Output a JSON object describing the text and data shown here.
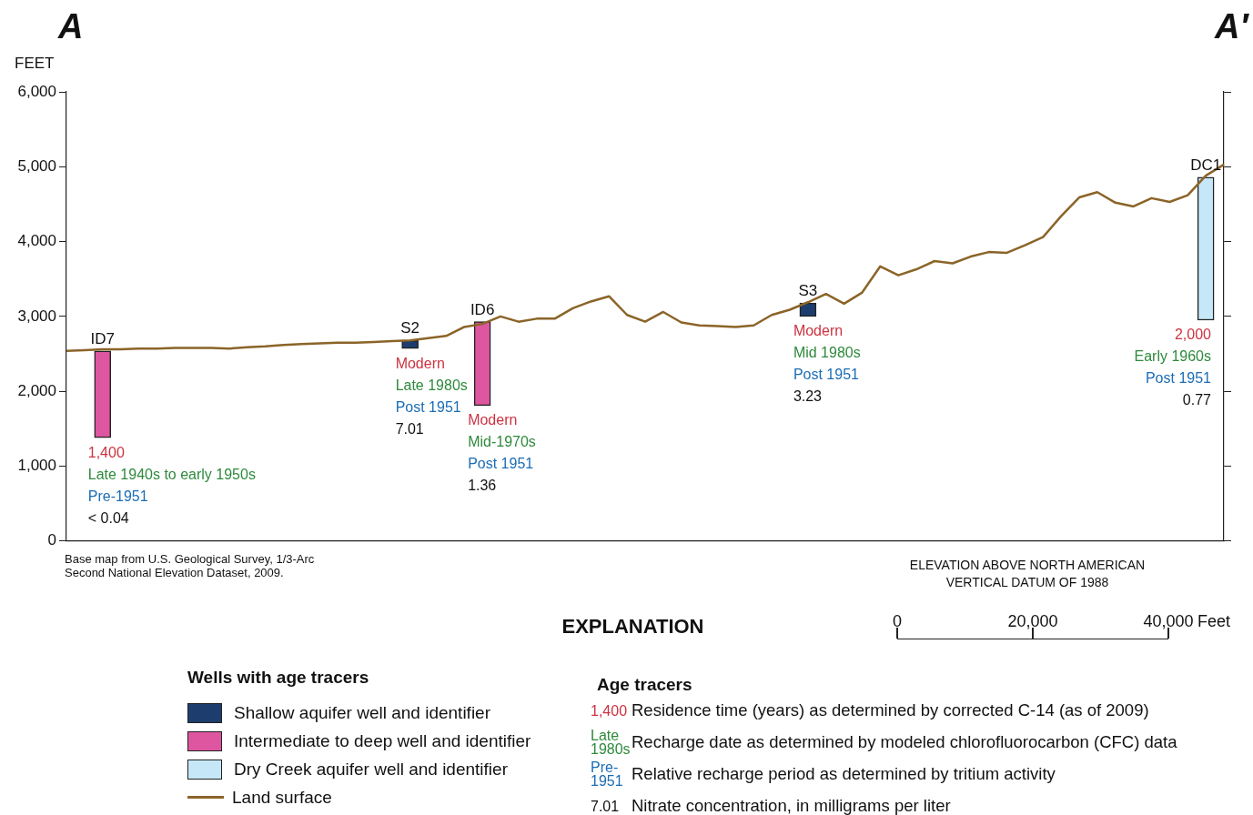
{
  "chart_data": [
    {
      "type": "line",
      "ylabel": "FEET",
      "legend": "bottom",
      "legend_title": "Wells with age tracers",
      "marker": "none",
      "grid": false,
      "tick_labels": "y",
      "categories": [
        null,
        null,
        "ID7",
        null,
        null,
        null,
        null,
        null,
        null,
        null,
        null,
        null,
        null,
        null,
        null,
        null,
        null,
        null,
        null,
        "S2",
        null,
        null,
        null,
        "ID6",
        null,
        null,
        null,
        null,
        null,
        null,
        null,
        null,
        null,
        null,
        null,
        null,
        null,
        null,
        null,
        null,
        null,
        "S3",
        null,
        null,
        null,
        null,
        null,
        null,
        null,
        null,
        null,
        null,
        null,
        null,
        null,
        null,
        null,
        null,
        null,
        null,
        null,
        null,
        null,
        "DC1",
        null
      ],
      "ylim": [
        0,
        6000
      ],
      "yticks": [
        {
          "value": 0,
          "label": "0"
        },
        {
          "value": 1000,
          "label": "1,000"
        },
        {
          "value": 2000,
          "label": "2,000"
        },
        {
          "value": 3000,
          "label": "3,000"
        },
        {
          "value": 4000,
          "label": "4,000"
        },
        {
          "value": 5000,
          "label": "5,000"
        },
        {
          "value": 6000,
          "label": "6,000"
        }
      ],
      "series": [
        {
          "name": "Shallow aquifer well and identifier",
          "type": "bar",
          "color": "#1d3d6e",
          "values": [
            null,
            null,
            null,
            null,
            null,
            null,
            null,
            null,
            null,
            null,
            null,
            null,
            null,
            null,
            null,
            null,
            null,
            null,
            null,
            110,
            null,
            null,
            null,
            null,
            null,
            null,
            null,
            null,
            null,
            null,
            null,
            null,
            null,
            null,
            null,
            null,
            null,
            null,
            null,
            null,
            null,
            180,
            null,
            null,
            null,
            null,
            null,
            null,
            null,
            null,
            null,
            null,
            null,
            null,
            null,
            null,
            null,
            null,
            null,
            null,
            null,
            null,
            null,
            null,
            null
          ],
          "base": [
            null,
            null,
            null,
            null,
            null,
            null,
            null,
            null,
            null,
            null,
            null,
            null,
            null,
            null,
            null,
            null,
            null,
            null,
            null,
            2570,
            null,
            null,
            null,
            null,
            null,
            null,
            null,
            null,
            null,
            null,
            null,
            null,
            null,
            null,
            null,
            null,
            null,
            null,
            null,
            null,
            null,
            3000,
            null,
            null,
            null,
            null,
            null,
            null,
            null,
            null,
            null,
            null,
            null,
            null,
            null,
            null,
            null,
            null,
            null,
            null,
            null,
            null,
            null,
            null,
            null
          ]
        },
        {
          "name": "Intermediate to deep well and identifier",
          "type": "bar",
          "color": "#de55a0",
          "values": [
            null,
            null,
            1160,
            null,
            null,
            null,
            null,
            null,
            null,
            null,
            null,
            null,
            null,
            null,
            null,
            null,
            null,
            null,
            null,
            null,
            null,
            null,
            null,
            1120,
            null,
            null,
            null,
            null,
            null,
            null,
            null,
            null,
            null,
            null,
            null,
            null,
            null,
            null,
            null,
            null,
            null,
            null,
            null,
            null,
            null,
            null,
            null,
            null,
            null,
            null,
            null,
            null,
            null,
            null,
            null,
            null,
            null,
            null,
            null,
            null,
            null,
            null,
            null,
            null,
            null
          ],
          "base": [
            null,
            null,
            1380,
            null,
            null,
            null,
            null,
            null,
            null,
            null,
            null,
            null,
            null,
            null,
            null,
            null,
            null,
            null,
            null,
            null,
            null,
            null,
            null,
            1810,
            null,
            null,
            null,
            null,
            null,
            null,
            null,
            null,
            null,
            null,
            null,
            null,
            null,
            null,
            null,
            null,
            null,
            null,
            null,
            null,
            null,
            null,
            null,
            null,
            null,
            null,
            null,
            null,
            null,
            null,
            null,
            null,
            null,
            null,
            null,
            null,
            null,
            null,
            null,
            null,
            null
          ]
        },
        {
          "name": "Dry Creek aquifer well and identifier",
          "type": "bar",
          "color": "#c6e7f8",
          "values": [
            null,
            null,
            null,
            null,
            null,
            null,
            null,
            null,
            null,
            null,
            null,
            null,
            null,
            null,
            null,
            null,
            null,
            null,
            null,
            null,
            null,
            null,
            null,
            null,
            null,
            null,
            null,
            null,
            null,
            null,
            null,
            null,
            null,
            null,
            null,
            null,
            null,
            null,
            null,
            null,
            null,
            null,
            null,
            null,
            null,
            null,
            null,
            null,
            null,
            null,
            null,
            null,
            null,
            null,
            null,
            null,
            null,
            null,
            null,
            null,
            null,
            null,
            null,
            1910,
            null
          ],
          "base": [
            null,
            null,
            null,
            null,
            null,
            null,
            null,
            null,
            null,
            null,
            null,
            null,
            null,
            null,
            null,
            null,
            null,
            null,
            null,
            null,
            null,
            null,
            null,
            null,
            null,
            null,
            null,
            null,
            null,
            null,
            null,
            null,
            null,
            null,
            null,
            null,
            null,
            null,
            null,
            null,
            null,
            null,
            null,
            null,
            null,
            null,
            null,
            null,
            null,
            null,
            null,
            null,
            null,
            null,
            null,
            null,
            null,
            null,
            null,
            null,
            null,
            null,
            null,
            2950,
            null
          ]
        },
        {
          "name": "Land surface",
          "type": "line",
          "color": "#8b6428",
          "values": [
            2540,
            2550,
            2560,
            2560,
            2570,
            2570,
            2580,
            2580,
            2580,
            2570,
            2590,
            2600,
            2620,
            2630,
            2640,
            2650,
            2650,
            2660,
            2670,
            2680,
            2710,
            2740,
            2860,
            2900,
            3000,
            2930,
            2970,
            2970,
            3110,
            3200,
            3270,
            3020,
            2930,
            3060,
            2920,
            2880,
            2870,
            2860,
            2880,
            3020,
            3090,
            3190,
            3300,
            3170,
            3320,
            3670,
            3550,
            3630,
            3740,
            3710,
            3800,
            3860,
            3850,
            3950,
            4060,
            4340,
            4590,
            4660,
            4520,
            4470,
            4580,
            4530,
            4620,
            4880,
            5030
          ]
        }
      ],
      "annotations": [
        "A",
        "A′",
        "Base map from U.S. Geological Survey, 1/3-Arc Second National Elevation Dataset, 2009.",
        "ELEVATION ABOVE NORTH AMERICAN VERTICAL DATUM OF 1988",
        "1,400",
        "Late 1940s to early 1950s",
        "Pre-1951",
        "< 0.04",
        "Modern",
        "Late 1980s",
        "Post 1951",
        "7.01",
        "Modern",
        "Mid-1970s",
        "Post 1951",
        "1.36",
        "Modern",
        "Mid 1980s",
        "Post 1951",
        "3.23",
        "2,000",
        "Early 1960s",
        "Post 1951",
        "0.77"
      ]
    },
    {
      "type": "other",
      "title": "EXPLANATION",
      "annotations": [
        "0",
        "20,000",
        "40,000",
        "Feet",
        "Age tracers",
        "1,400",
        "Residence time (years) as determined by corrected C-14 (as of 2009)",
        "Late 1980s",
        "Recharge date as determined by modeled chlorofluorocarbon (CFC) data",
        "Pre-1951",
        "Relative recharge period as determined by tritium activity",
        "7.01",
        "Nitrate concentration, in milligrams per liter"
      ]
    }
  ]
}
